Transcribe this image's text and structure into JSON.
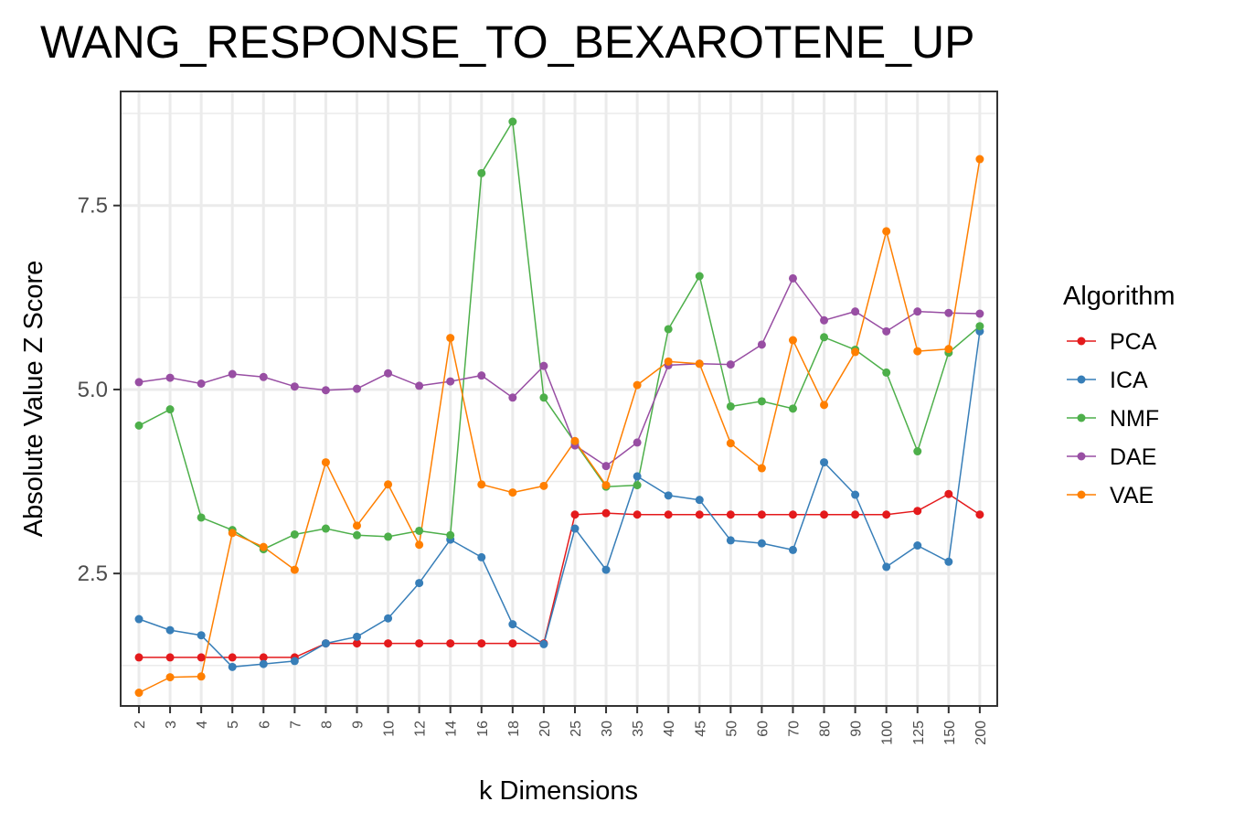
{
  "chart_data": {
    "type": "line",
    "title": "WANG_RESPONSE_TO_BEXAROTENE_UP",
    "xlabel": "k Dimensions",
    "ylabel": "Absolute Value Z Score",
    "categories": [
      "2",
      "3",
      "4",
      "5",
      "6",
      "7",
      "8",
      "9",
      "10",
      "12",
      "14",
      "16",
      "18",
      "20",
      "25",
      "30",
      "35",
      "40",
      "45",
      "50",
      "60",
      "70",
      "80",
      "90",
      "100",
      "125",
      "150",
      "200"
    ],
    "y_ticks": [
      "2.5",
      "5.0",
      "7.5"
    ],
    "y_tick_values": [
      2.5,
      5.0,
      7.5
    ],
    "ylim": [
      0.7,
      9.05
    ],
    "grid": true,
    "legend_title": "Algorithm",
    "legend_position": "right",
    "series": [
      {
        "name": "PCA",
        "color": "#e41a1c",
        "values": [
          1.36,
          1.36,
          1.36,
          1.36,
          1.36,
          1.36,
          1.55,
          1.55,
          1.55,
          1.55,
          1.55,
          1.55,
          1.55,
          1.55,
          3.3,
          3.32,
          3.3,
          3.3,
          3.3,
          3.3,
          3.3,
          3.3,
          3.3,
          3.3,
          3.3,
          3.35,
          3.58,
          3.3
        ]
      },
      {
        "name": "ICA",
        "color": "#377eb8",
        "values": [
          1.88,
          1.73,
          1.66,
          1.23,
          1.27,
          1.31,
          1.55,
          1.64,
          1.89,
          2.37,
          2.96,
          2.72,
          1.81,
          1.54,
          3.11,
          2.55,
          3.82,
          3.56,
          3.5,
          2.95,
          2.91,
          2.82,
          4.01,
          3.57,
          2.59,
          2.88,
          2.66,
          5.79
        ]
      },
      {
        "name": "NMF",
        "color": "#4daf4a",
        "values": [
          4.51,
          4.73,
          3.26,
          3.09,
          2.83,
          3.03,
          3.11,
          3.02,
          3.0,
          3.08,
          3.02,
          7.94,
          8.64,
          4.89,
          4.28,
          3.68,
          3.7,
          5.82,
          6.54,
          4.77,
          4.84,
          4.74,
          5.71,
          5.54,
          5.23,
          4.16,
          5.5,
          5.86
        ]
      },
      {
        "name": "DAE",
        "color": "#984ea3",
        "values": [
          5.1,
          5.16,
          5.08,
          5.21,
          5.17,
          5.04,
          4.99,
          5.01,
          5.22,
          5.05,
          5.11,
          5.19,
          4.89,
          5.32,
          4.24,
          3.96,
          4.28,
          5.33,
          5.35,
          5.34,
          5.61,
          6.51,
          5.94,
          6.06,
          5.79,
          6.06,
          6.04,
          6.03
        ]
      },
      {
        "name": "VAE",
        "color": "#ff7f00",
        "values": [
          0.88,
          1.09,
          1.1,
          3.05,
          2.86,
          2.55,
          4.01,
          3.15,
          3.71,
          2.89,
          5.7,
          3.71,
          3.6,
          3.69,
          4.3,
          3.7,
          5.06,
          5.38,
          5.35,
          4.27,
          3.93,
          5.67,
          4.79,
          5.51,
          7.15,
          5.52,
          5.55,
          8.13
        ]
      }
    ]
  }
}
